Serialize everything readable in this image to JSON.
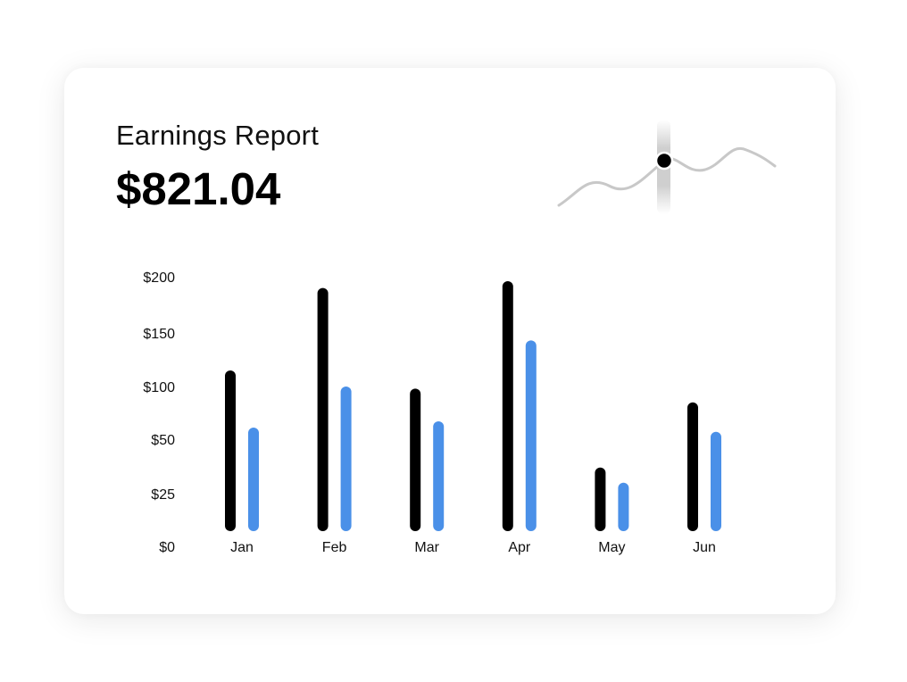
{
  "header": {
    "title": "Earnings Report",
    "amount": "$821.04"
  },
  "colors": {
    "series_primary": "#000000",
    "series_secondary": "#4A90E8",
    "sparkline": "#C8C8C8",
    "marker": "#000000"
  },
  "chart_data": {
    "type": "bar",
    "title": "",
    "xlabel": "",
    "ylabel": "",
    "categories": [
      "Jan",
      "Feb",
      "Mar",
      "Apr",
      "May",
      "Jun"
    ],
    "y_ticks": [
      0,
      25,
      50,
      100,
      150,
      200
    ],
    "y_tick_labels": [
      "$0",
      "$25",
      "$50",
      "$100",
      "$150",
      "$200"
    ],
    "ylim": [
      0,
      200
    ],
    "grid": false,
    "legend": "none",
    "series": [
      {
        "values": [
          115,
          190,
          98,
          196,
          37,
          85
        ]
      },
      {
        "values": [
          61,
          100,
          67,
          143,
          30,
          57
        ]
      }
    ]
  }
}
